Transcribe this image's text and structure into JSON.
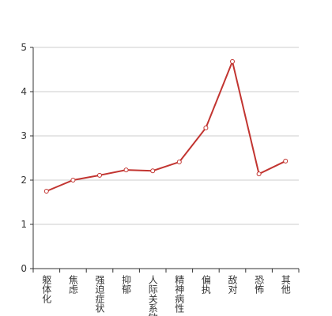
{
  "chart_data": {
    "type": "line",
    "categories": [
      "躯体化",
      "焦虑",
      "强迫症状",
      "抑郁",
      "人际关系敏感",
      "精神病性",
      "偏执",
      "敌对",
      "恐怖",
      "其他"
    ],
    "series": [
      {
        "color": "#c23531",
        "values": [
          1.75,
          2.0,
          2.11,
          2.23,
          2.21,
          2.41,
          3.18,
          4.68,
          2.14,
          2.43
        ]
      }
    ],
    "ylim": [
      0,
      5
    ],
    "yticks": [
      0,
      1,
      2,
      3,
      4,
      5
    ],
    "grid": true
  }
}
